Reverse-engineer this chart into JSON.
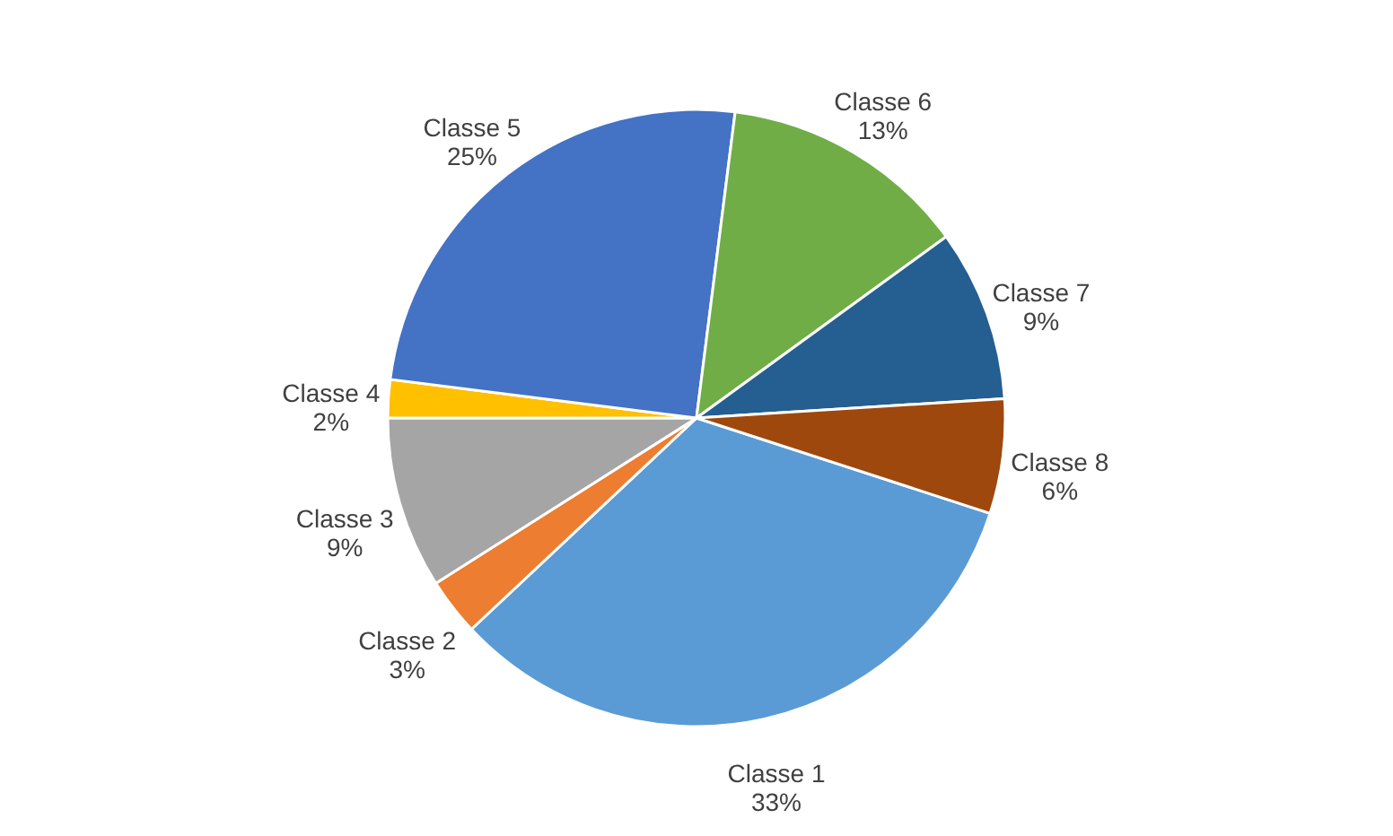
{
  "chart_data": {
    "type": "pie",
    "categories": [
      "Classe 1",
      "Classe 2",
      "Classe 3",
      "Classe 4",
      "Classe 5",
      "Classe 6",
      "Classe 7",
      "Classe 8"
    ],
    "values": [
      33,
      3,
      9,
      2,
      25,
      13,
      9,
      6
    ],
    "value_labels": [
      "33%",
      "3%",
      "9%",
      "2%",
      "25%",
      "13%",
      "9%",
      "6%"
    ],
    "colors": [
      "#5b9bd5",
      "#ed7d31",
      "#a5a5a5",
      "#ffc000",
      "#4472c4",
      "#70ad47",
      "#255e91",
      "#9e480e"
    ],
    "legend": false
  }
}
